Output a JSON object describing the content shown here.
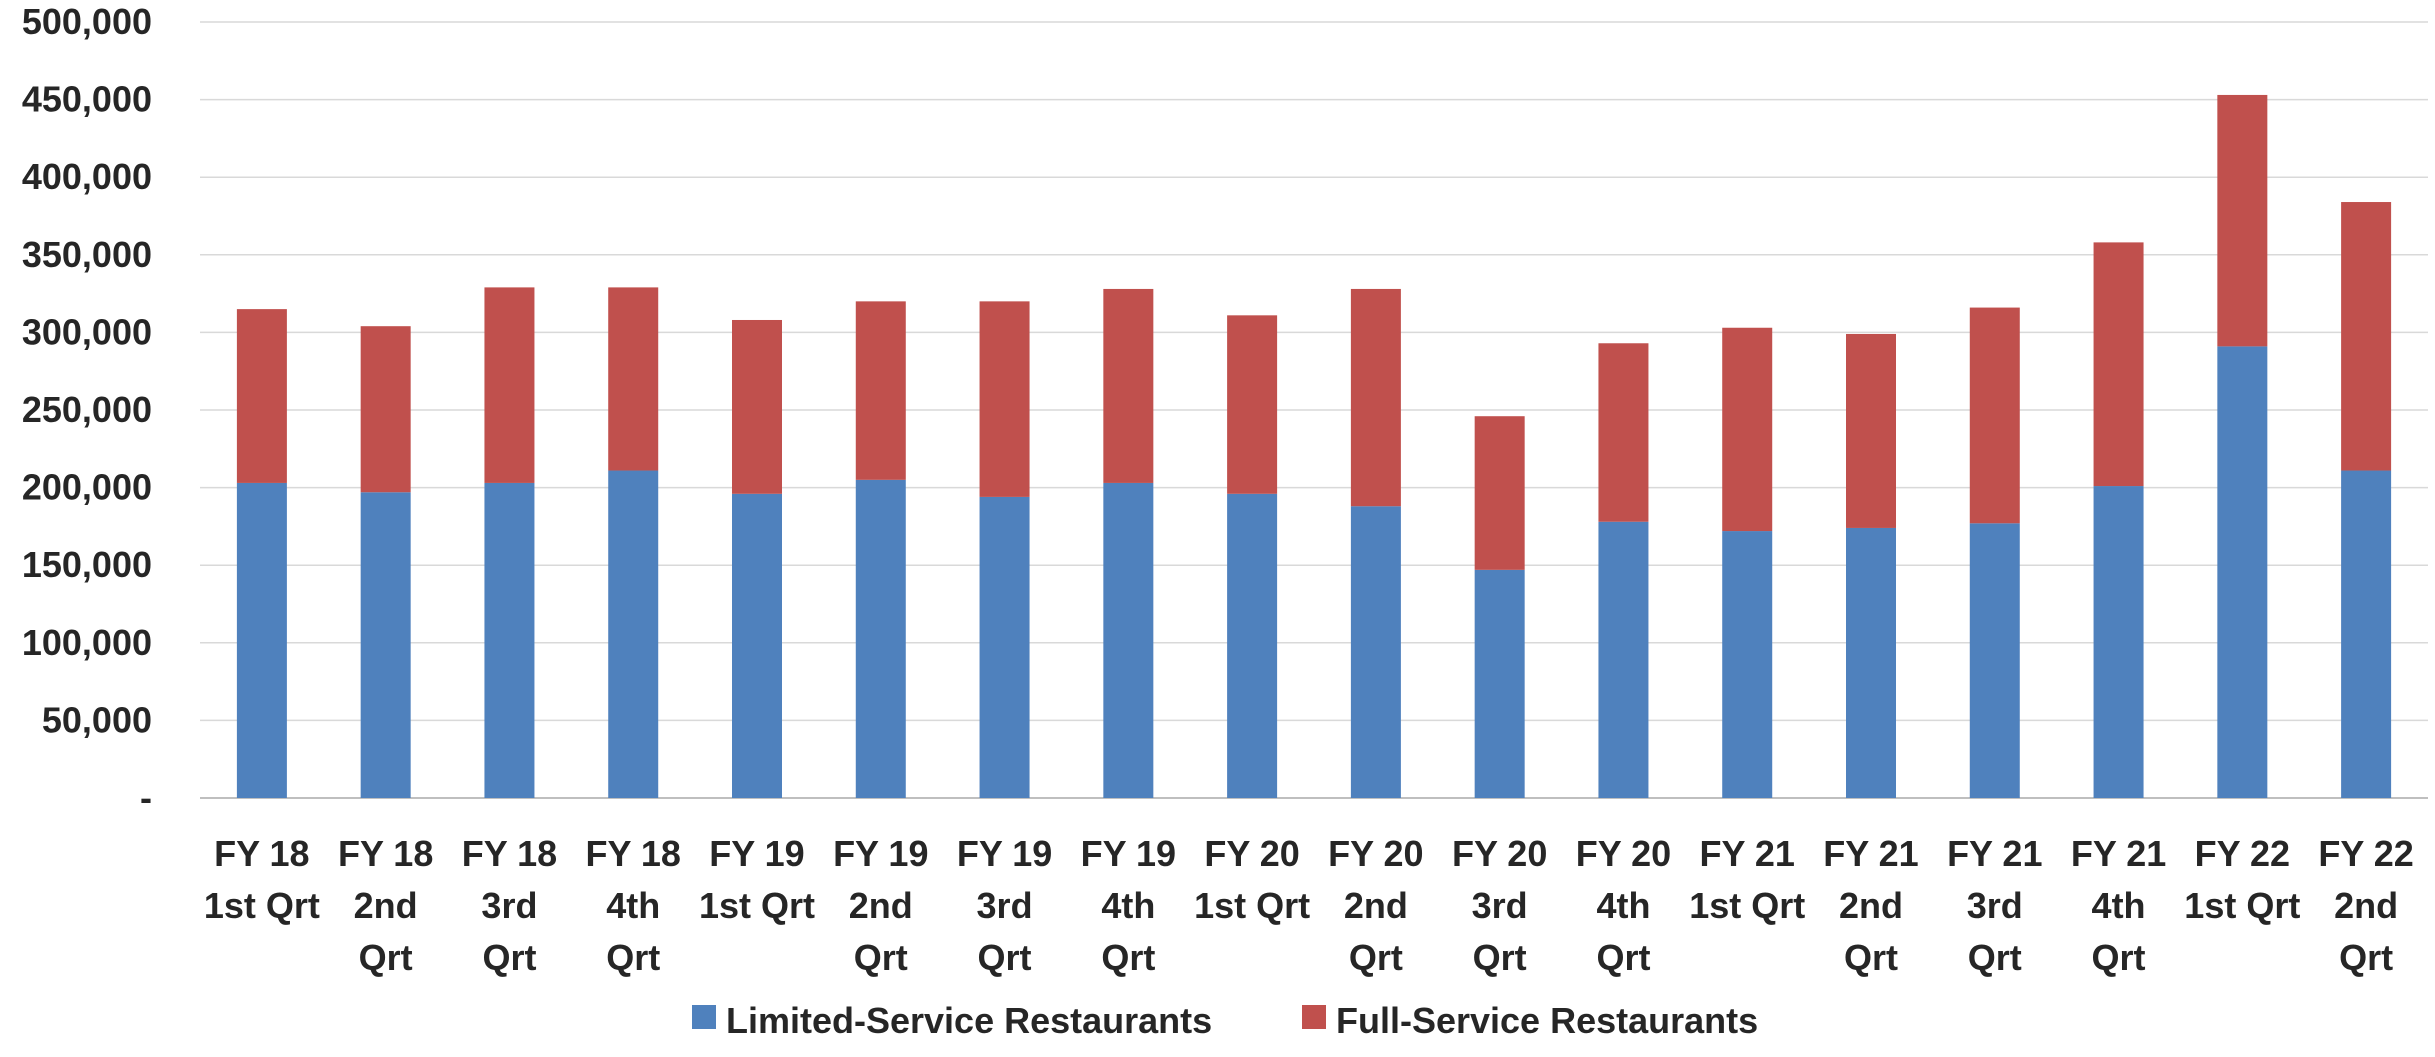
{
  "chart_data": {
    "type": "bar",
    "stacked": true,
    "categories": [
      [
        "FY 18",
        "1st Qrt"
      ],
      [
        "FY 18",
        "2nd",
        "Qrt"
      ],
      [
        "FY 18",
        "3rd",
        "Qrt"
      ],
      [
        "FY 18",
        "4th",
        "Qrt"
      ],
      [
        "FY 19",
        "1st Qrt"
      ],
      [
        "FY 19",
        "2nd",
        "Qrt"
      ],
      [
        "FY 19",
        "3rd",
        "Qrt"
      ],
      [
        "FY 19",
        "4th",
        "Qrt"
      ],
      [
        "FY 20",
        "1st Qrt"
      ],
      [
        "FY 20",
        "2nd",
        "Qrt"
      ],
      [
        "FY 20",
        "3rd",
        "Qrt"
      ],
      [
        "FY 20",
        "4th",
        "Qrt"
      ],
      [
        "FY 21",
        "1st Qrt"
      ],
      [
        "FY 21",
        "2nd",
        "Qrt"
      ],
      [
        "FY 21",
        "3rd",
        "Qrt"
      ],
      [
        "FY 21",
        "4th",
        "Qrt"
      ],
      [
        "FY 22",
        "1st Qrt"
      ],
      [
        "FY 22",
        "2nd",
        "Qrt"
      ]
    ],
    "series": [
      {
        "name": "Limited-Service Restaurants",
        "color": "#4f81bd",
        "values": [
          203000,
          197000,
          203000,
          211000,
          196000,
          205000,
          194000,
          203000,
          196000,
          188000,
          147000,
          178000,
          172000,
          174000,
          177000,
          201000,
          291000,
          211000
        ]
      },
      {
        "name": "Full-Service Restaurants",
        "color": "#c0504d",
        "values": [
          112000,
          107000,
          126000,
          118000,
          112000,
          115000,
          126000,
          125000,
          115000,
          140000,
          99000,
          115000,
          131000,
          125000,
          139000,
          157000,
          162000,
          173000
        ]
      }
    ],
    "ylim": [
      0,
      500000
    ],
    "yticks": [
      0,
      50000,
      100000,
      150000,
      200000,
      250000,
      300000,
      350000,
      400000,
      450000,
      500000
    ],
    "ytick_labels": [
      "-",
      "50,000",
      "100,000",
      "150,000",
      "200,000",
      "250,000",
      "300,000",
      "350,000",
      "400,000",
      "450,000",
      "500,000"
    ],
    "grid": true,
    "legend_position": "bottom",
    "gridline_color": "#d9d9d9"
  }
}
